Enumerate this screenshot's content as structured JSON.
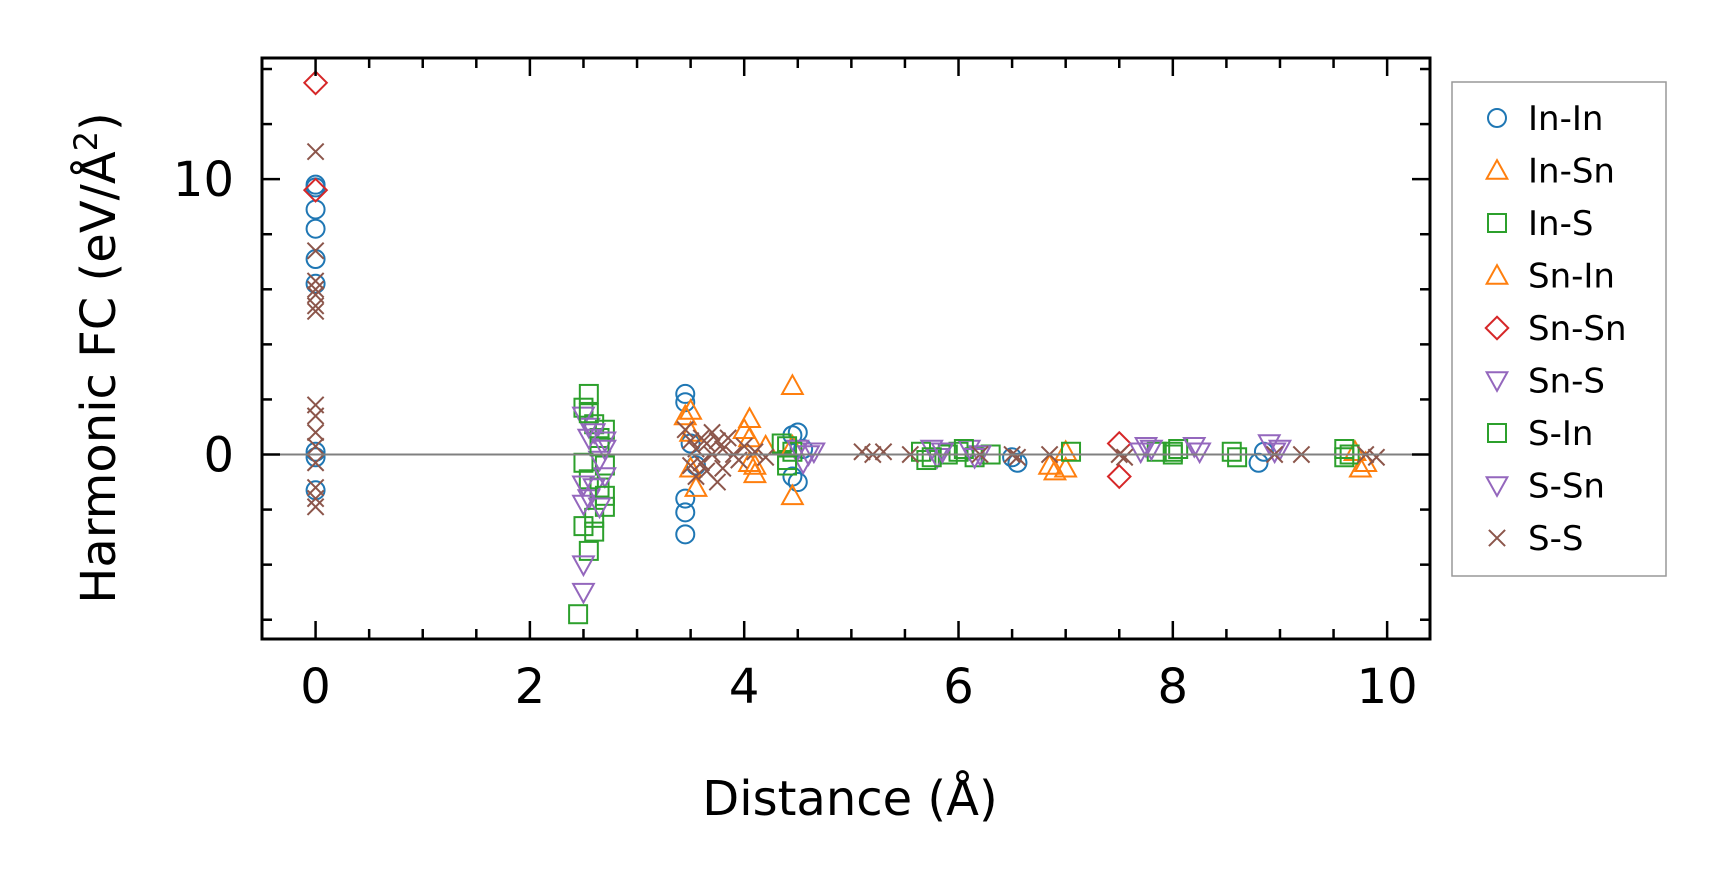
{
  "chart_data": {
    "type": "scatter",
    "xlabel": "Distance (Å)",
    "ylabel": {
      "main": "Harmonic FC (eV/Å",
      "sup": "2",
      "close": ")"
    },
    "xlim": [
      -0.5,
      10.4
    ],
    "ylim": [
      -6.7,
      14.4
    ],
    "xticks": [
      0,
      2,
      4,
      6,
      8,
      10
    ],
    "xtick_labels": [
      "0",
      "2",
      "4",
      "6",
      "8",
      "10"
    ],
    "yticks": [
      0,
      10
    ],
    "ytick_labels": [
      "0",
      "10"
    ],
    "x_minor_step": 0.5,
    "y_minor_step": 2,
    "zero_line": true,
    "grid": false,
    "legend_position": "outside-right",
    "series": [
      {
        "name": "In-In",
        "marker": "circle",
        "color": "#1f77b4",
        "points": [
          [
            0,
            9.8
          ],
          [
            0,
            9.7
          ],
          [
            0,
            8.9
          ],
          [
            0,
            8.2
          ],
          [
            0,
            7.1
          ],
          [
            0,
            6.2
          ],
          [
            0,
            0.1
          ],
          [
            0,
            -0.1
          ],
          [
            0,
            -1.3
          ],
          [
            3.45,
            2.2
          ],
          [
            3.45,
            1.9
          ],
          [
            3.45,
            -1.6
          ],
          [
            3.45,
            -2.1
          ],
          [
            3.45,
            -2.9
          ],
          [
            3.5,
            0.4
          ],
          [
            3.55,
            -0.4
          ],
          [
            4.45,
            0.7
          ],
          [
            4.5,
            0.8
          ],
          [
            4.45,
            -0.8
          ],
          [
            4.5,
            -1.0
          ],
          [
            4.55,
            0.2
          ],
          [
            6.5,
            -0.1
          ],
          [
            6.55,
            -0.3
          ],
          [
            8.8,
            -0.3
          ],
          [
            8.85,
            0.1
          ]
        ]
      },
      {
        "name": "In-Sn",
        "marker": "triangle-up",
        "color": "#ff7f0e",
        "points": [
          [
            3.5,
            1.6
          ],
          [
            3.5,
            -0.5
          ],
          [
            4.05,
            1.3
          ],
          [
            4.0,
            0.9
          ],
          [
            4.1,
            -0.7
          ],
          [
            4.05,
            -0.3
          ],
          [
            4.2,
            0.3
          ],
          [
            4.45,
            2.5
          ],
          [
            4.45,
            -1.5
          ],
          [
            6.9,
            -0.6
          ],
          [
            7.0,
            0.1
          ],
          [
            7.0,
            -0.5
          ],
          [
            9.7,
            0.1
          ],
          [
            9.75,
            -0.5
          ]
        ]
      },
      {
        "name": "In-S",
        "marker": "square",
        "color": "#2ca02c",
        "points": [
          [
            2.5,
            1.7
          ],
          [
            2.55,
            2.2
          ],
          [
            2.5,
            -0.3
          ],
          [
            2.55,
            -0.9
          ],
          [
            2.5,
            -2.6
          ],
          [
            2.55,
            -3.5
          ],
          [
            2.45,
            -5.8
          ],
          [
            2.6,
            1.1
          ],
          [
            2.65,
            0.6
          ],
          [
            2.7,
            0.9
          ],
          [
            2.7,
            -0.4
          ],
          [
            2.65,
            -1.2
          ],
          [
            2.7,
            -1.9
          ],
          [
            2.6,
            -2.8
          ],
          [
            4.35,
            0.4
          ],
          [
            4.4,
            -0.2
          ],
          [
            4.45,
            0.1
          ],
          [
            5.65,
            0.1
          ],
          [
            5.7,
            -0.2
          ],
          [
            5.9,
            0.0
          ],
          [
            6.0,
            0.1
          ],
          [
            6.15,
            -0.1
          ],
          [
            6.3,
            0.0
          ],
          [
            7.05,
            0.1
          ],
          [
            7.85,
            0.1
          ],
          [
            8.0,
            0.0
          ],
          [
            8.05,
            0.2
          ],
          [
            8.55,
            0.1
          ],
          [
            8.6,
            -0.1
          ],
          [
            9.6,
            0.2
          ],
          [
            9.65,
            0.0
          ]
        ]
      },
      {
        "name": "Sn-In",
        "marker": "triangle-up",
        "color": "#ff7f0e",
        "points": [
          [
            3.45,
            1.4
          ],
          [
            3.5,
            0.8
          ],
          [
            3.55,
            -1.2
          ],
          [
            4.05,
            0.6
          ],
          [
            4.1,
            -0.4
          ],
          [
            4.45,
            0.3
          ],
          [
            6.85,
            -0.4
          ],
          [
            9.8,
            -0.3
          ]
        ]
      },
      {
        "name": "Sn-Sn",
        "marker": "diamond",
        "color": "#d62728",
        "points": [
          [
            0,
            13.5
          ],
          [
            0,
            9.6
          ],
          [
            7.5,
            0.4
          ],
          [
            7.5,
            -0.8
          ]
        ]
      },
      {
        "name": "Sn-S",
        "marker": "triangle-down",
        "color": "#9467bd",
        "points": [
          [
            2.5,
            1.4
          ],
          [
            2.55,
            1.0
          ],
          [
            2.5,
            -1.1
          ],
          [
            2.55,
            -1.6
          ],
          [
            2.5,
            -4.0
          ],
          [
            2.5,
            -5.0
          ],
          [
            2.6,
            0.8
          ],
          [
            2.6,
            -1.2
          ],
          [
            2.65,
            -0.2
          ],
          [
            2.7,
            0.5
          ],
          [
            2.7,
            -0.8
          ],
          [
            4.5,
            0.2
          ],
          [
            4.55,
            -0.3
          ],
          [
            4.65,
            0.1
          ],
          [
            5.75,
            0.2
          ],
          [
            5.8,
            -0.1
          ],
          [
            6.1,
            0.2
          ],
          [
            6.2,
            0.0
          ],
          [
            7.75,
            0.3
          ],
          [
            7.8,
            0.2
          ],
          [
            8.2,
            0.3
          ],
          [
            8.25,
            0.1
          ],
          [
            8.9,
            0.4
          ],
          [
            9.0,
            0.2
          ]
        ]
      },
      {
        "name": "S-In",
        "marker": "square",
        "color": "#2ca02c",
        "points": [
          [
            2.55,
            1.5
          ],
          [
            2.6,
            -2.3
          ],
          [
            2.65,
            0.3
          ],
          [
            2.7,
            -1.5
          ],
          [
            4.4,
            0.3
          ],
          [
            4.4,
            -0.4
          ],
          [
            5.75,
            -0.1
          ],
          [
            6.05,
            0.2
          ],
          [
            8.0,
            0.1
          ],
          [
            9.6,
            -0.1
          ]
        ]
      },
      {
        "name": "S-Sn",
        "marker": "triangle-down",
        "color": "#9467bd",
        "points": [
          [
            2.5,
            -1.8
          ],
          [
            2.55,
            0.6
          ],
          [
            2.65,
            -1.9
          ],
          [
            2.7,
            0.2
          ],
          [
            4.6,
            0.0
          ],
          [
            5.85,
            0.1
          ],
          [
            6.15,
            -0.1
          ],
          [
            7.7,
            0.1
          ],
          [
            8.95,
            0.1
          ]
        ]
      },
      {
        "name": "S-S",
        "marker": "x",
        "color": "#8c564b",
        "points": [
          [
            0,
            11.0
          ],
          [
            0,
            7.4
          ],
          [
            0,
            6.3
          ],
          [
            0,
            6.0
          ],
          [
            0,
            5.8
          ],
          [
            0,
            5.4
          ],
          [
            0,
            5.2
          ],
          [
            0,
            1.8
          ],
          [
            0,
            1.4
          ],
          [
            0,
            0.8
          ],
          [
            0,
            0.3
          ],
          [
            0,
            -0.3
          ],
          [
            0,
            -1.2
          ],
          [
            0,
            -1.6
          ],
          [
            0,
            -1.9
          ],
          [
            3.45,
            0.9
          ],
          [
            3.5,
            0.5
          ],
          [
            3.5,
            -0.4
          ],
          [
            3.55,
            -0.8
          ],
          [
            3.55,
            0.2
          ],
          [
            3.6,
            0.6
          ],
          [
            3.6,
            -0.3
          ],
          [
            3.65,
            0.4
          ],
          [
            3.65,
            -0.6
          ],
          [
            3.7,
            0.8
          ],
          [
            3.7,
            0.0
          ],
          [
            3.75,
            -1.0
          ],
          [
            3.75,
            0.5
          ],
          [
            3.8,
            0.2
          ],
          [
            3.8,
            -0.5
          ],
          [
            3.85,
            0.6
          ],
          [
            3.9,
            0.0
          ],
          [
            3.95,
            -0.2
          ],
          [
            4.0,
            0.3
          ],
          [
            4.1,
            0.1
          ],
          [
            4.2,
            -0.1
          ],
          [
            5.1,
            0.1
          ],
          [
            5.2,
            0.0
          ],
          [
            5.3,
            0.1
          ],
          [
            5.55,
            0.0
          ],
          [
            6.2,
            0.0
          ],
          [
            6.5,
            0.0
          ],
          [
            6.55,
            -0.1
          ],
          [
            6.85,
            0.0
          ],
          [
            7.5,
            0.0
          ],
          [
            7.55,
            -0.1
          ],
          [
            8.95,
            0.0
          ],
          [
            9.2,
            0.0
          ],
          [
            9.8,
            0.0
          ],
          [
            9.9,
            -0.1
          ]
        ]
      }
    ]
  }
}
